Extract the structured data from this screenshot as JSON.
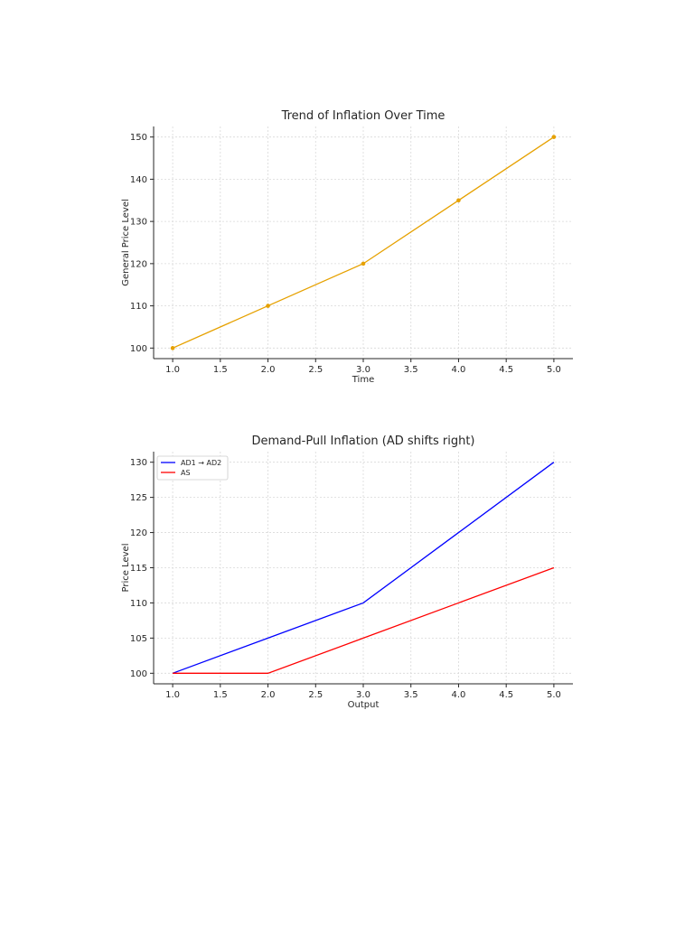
{
  "chart_data": [
    {
      "type": "line",
      "title": "Trend of Inflation Over Time",
      "xlabel": "Time",
      "ylabel": "General Price Level",
      "x": [
        1.0,
        2.0,
        3.0,
        4.0,
        5.0
      ],
      "series": [
        {
          "values": [
            100,
            110,
            120,
            135,
            150
          ],
          "color": "#e6a100",
          "markers": true
        }
      ],
      "xlim": [
        0.8,
        5.2
      ],
      "ylim": [
        97.5,
        152.5
      ],
      "xticks": [
        "1.0",
        "1.5",
        "2.0",
        "2.5",
        "3.0",
        "3.5",
        "4.0",
        "4.5",
        "5.0"
      ],
      "yticks": [
        "100",
        "110",
        "120",
        "130",
        "140",
        "150"
      ],
      "grid": true,
      "legend": "none"
    },
    {
      "type": "line",
      "title": "Demand-Pull Inflation (AD shifts right)",
      "xlabel": "Output",
      "ylabel": "Price Level",
      "x": [
        1.0,
        2.0,
        3.0,
        4.0,
        5.0
      ],
      "series": [
        {
          "name": "AD1 → AD2",
          "values": [
            100,
            105,
            110,
            120,
            130
          ],
          "color": "#0000ff",
          "markers": false
        },
        {
          "name": "AS",
          "values": [
            100,
            100,
            105,
            110,
            115
          ],
          "color": "#ff0000",
          "markers": false
        }
      ],
      "xlim": [
        0.8,
        5.2
      ],
      "ylim": [
        98.5,
        131.5
      ],
      "xticks": [
        "1.0",
        "1.5",
        "2.0",
        "2.5",
        "3.0",
        "3.5",
        "4.0",
        "4.5",
        "5.0"
      ],
      "yticks": [
        "100",
        "105",
        "110",
        "115",
        "120",
        "125",
        "130"
      ],
      "grid": true,
      "legend": "top-left"
    }
  ]
}
